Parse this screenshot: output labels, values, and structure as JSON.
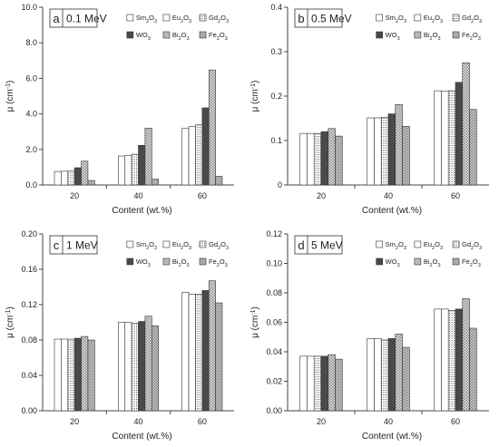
{
  "chart_data": [
    {
      "type": "bar",
      "panel_letter": "a",
      "title": "0.1 MeV",
      "xlabel": "Content (wt.%)",
      "ylabel": "μ (cm⁻¹)",
      "categories": [
        "20",
        "40",
        "60"
      ],
      "ylim": [
        0,
        10
      ],
      "yticks": [
        0,
        2,
        4,
        6,
        8,
        10
      ],
      "ytick_labels": [
        "0.0",
        "2.0",
        "4.0",
        "6.0",
        "8.0",
        "10.0"
      ],
      "series": [
        {
          "name": "Sm₂O₃",
          "values": [
            0.76,
            1.63,
            3.2
          ]
        },
        {
          "name": "Eu₂O₃",
          "values": [
            0.77,
            1.66,
            3.28
          ]
        },
        {
          "name": "Gd₂O₃",
          "values": [
            0.79,
            1.73,
            3.38
          ]
        },
        {
          "name": "WO₃",
          "values": [
            0.97,
            2.23,
            4.34
          ]
        },
        {
          "name": "Bi₂O₃",
          "values": [
            1.34,
            3.2,
            6.47
          ]
        },
        {
          "name": "Fe₂O₃",
          "values": [
            0.25,
            0.33,
            0.49
          ]
        }
      ]
    },
    {
      "type": "bar",
      "panel_letter": "b",
      "title": "0.5 MeV",
      "xlabel": "Content (wt.%)",
      "ylabel": "μ (cm⁻¹)",
      "categories": [
        "20",
        "40",
        "60"
      ],
      "ylim": [
        0,
        0.4
      ],
      "yticks": [
        0,
        0.1,
        0.2,
        0.3,
        0.4
      ],
      "ytick_labels": [
        "0",
        "0.1",
        "0.2",
        "0.3",
        "0.4"
      ],
      "series": [
        {
          "name": "Sm₂O₃",
          "values": [
            0.116,
            0.151,
            0.212
          ]
        },
        {
          "name": "Eu₂O₃",
          "values": [
            0.116,
            0.151,
            0.211
          ]
        },
        {
          "name": "Gd₂O₃",
          "values": [
            0.116,
            0.152,
            0.212
          ]
        },
        {
          "name": "WO₃",
          "values": [
            0.12,
            0.16,
            0.231
          ]
        },
        {
          "name": "Bi₂O₃",
          "values": [
            0.127,
            0.181,
            0.275
          ]
        },
        {
          "name": "Fe₂O₃",
          "values": [
            0.11,
            0.132,
            0.17
          ]
        }
      ]
    },
    {
      "type": "bar",
      "panel_letter": "c",
      "title": "1 MeV",
      "xlabel": "Content (wt.%)",
      "ylabel": "μ (cm⁻¹)",
      "categories": [
        "20",
        "40",
        "60"
      ],
      "ylim": [
        0,
        0.2
      ],
      "yticks": [
        0,
        0.04,
        0.08,
        0.12,
        0.16,
        0.2
      ],
      "ytick_labels": [
        "0.00",
        "0.04",
        "0.08",
        "0.12",
        "0.16",
        "0.20"
      ],
      "series": [
        {
          "name": "Sm₂O₃",
          "values": [
            0.081,
            0.1,
            0.134
          ]
        },
        {
          "name": "Eu₂O₃",
          "values": [
            0.081,
            0.1,
            0.132
          ]
        },
        {
          "name": "Gd₂O₃",
          "values": [
            0.081,
            0.099,
            0.132
          ]
        },
        {
          "name": "WO₃",
          "values": [
            0.082,
            0.101,
            0.136
          ]
        },
        {
          "name": "Bi₂O₃",
          "values": [
            0.084,
            0.107,
            0.147
          ]
        },
        {
          "name": "Fe₂O₃",
          "values": [
            0.08,
            0.096,
            0.122
          ]
        }
      ]
    },
    {
      "type": "bar",
      "panel_letter": "d",
      "title": "5 MeV",
      "xlabel": "Content (wt.%)",
      "ylabel": "μ (cm⁻¹)",
      "categories": [
        "20",
        "40",
        "60"
      ],
      "ylim": [
        0,
        0.12
      ],
      "yticks": [
        0,
        0.02,
        0.04,
        0.06,
        0.08,
        0.1,
        0.12
      ],
      "ytick_labels": [
        "0.00",
        "0.02",
        "0.04",
        "0.06",
        "0.08",
        "0.10",
        "0.12"
      ],
      "series": [
        {
          "name": "Sm₂O₃",
          "values": [
            0.037,
            0.049,
            0.069
          ]
        },
        {
          "name": "Eu₂O₃",
          "values": [
            0.037,
            0.049,
            0.069
          ]
        },
        {
          "name": "Gd₂O₃",
          "values": [
            0.037,
            0.048,
            0.068
          ]
        },
        {
          "name": "WO₃",
          "values": [
            0.037,
            0.049,
            0.069
          ]
        },
        {
          "name": "Bi₂O₃",
          "values": [
            0.038,
            0.052,
            0.076
          ]
        },
        {
          "name": "Fe₂O₃",
          "values": [
            0.035,
            0.043,
            0.056
          ]
        }
      ]
    }
  ]
}
